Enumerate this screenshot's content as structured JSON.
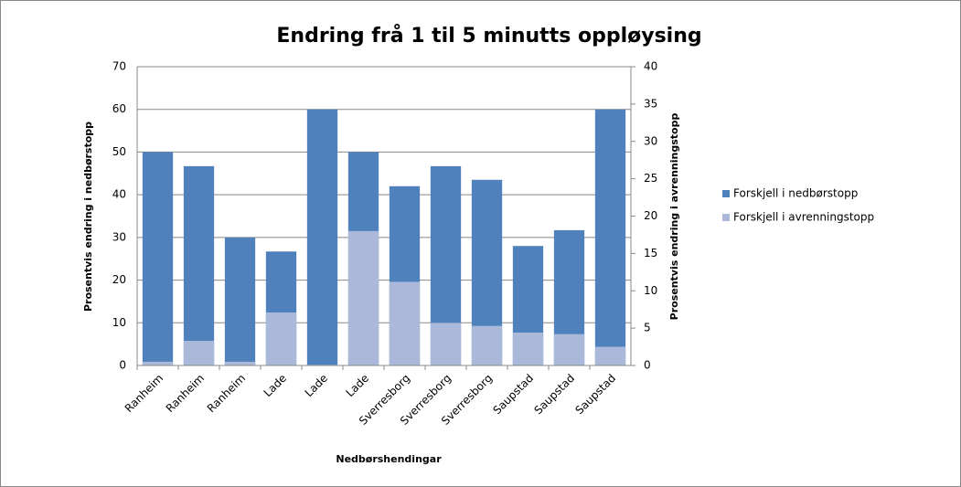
{
  "chart_data": {
    "type": "bar",
    "title": "Endring frå 1 til 5 minutts oppløysing",
    "x_label": "Nedbørshendingar",
    "y_label": "Prosentvis endring i nedbørstopp",
    "y2_label": "Prosentvis endring i avrenningstopp",
    "categories": [
      "Ranheim",
      "Ranheim",
      "Ranheim",
      "Lade",
      "Lade",
      "Lade",
      "Sverresborg",
      "Sverresborg",
      "Sverresborg",
      "Saupstad",
      "Saupstad",
      "Saupstad"
    ],
    "series": [
      {
        "name": "Forskjell i nedbørstopp",
        "color": "#4f81bd",
        "values": [
          50,
          46.7,
          30,
          26.7,
          60,
          50,
          42,
          46.7,
          43.5,
          28,
          31.7,
          60
        ]
      },
      {
        "name": "Forskjell i avrenningstopp",
        "color": "#aab9d9",
        "axis": "y2",
        "values": [
          0.5,
          3.3,
          0.5,
          7.1,
          0.1,
          18,
          11.2,
          5.7,
          5.3,
          4.4,
          4.2,
          2.5
        ]
      }
    ],
    "ylim": [
      0,
      70
    ],
    "yticks": [
      0,
      10,
      20,
      30,
      40,
      50,
      60,
      70
    ],
    "y2lim": [
      0,
      40
    ],
    "y2ticks": [
      0,
      5,
      10,
      15,
      20,
      25,
      30,
      35,
      40
    ],
    "grid": true
  }
}
